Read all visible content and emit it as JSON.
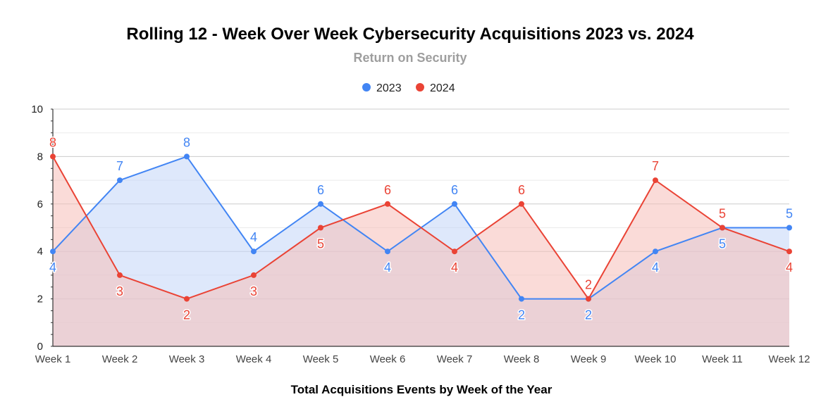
{
  "chart_data": {
    "type": "area",
    "title": "Rolling 12 - Week Over Week Cybersecurity Acquisitions 2023 vs. 2024",
    "subtitle": "Return on Security",
    "xlabel": "Total Acquisitions Events by Week of the Year",
    "ylabel": "",
    "ylim": [
      0,
      10
    ],
    "yticks": [
      "0",
      "2",
      "4",
      "6",
      "8",
      "10"
    ],
    "categories": [
      "Week 1",
      "Week 2",
      "Week 3",
      "Week 4",
      "Week 5",
      "Week 6",
      "Week 7",
      "Week 8",
      "Week 9",
      "Week 10",
      "Week 11",
      "Week 12"
    ],
    "legend_position": "top-center",
    "series": [
      {
        "name": "2023",
        "color": "#4285f4",
        "fill": "#c2d5f8",
        "values": [
          4,
          7,
          8,
          4,
          6,
          4,
          6,
          2,
          2,
          4,
          5,
          5
        ],
        "labels": [
          "4",
          "7",
          "8",
          "4",
          "6",
          "4",
          "6",
          "2",
          "2",
          "4",
          "5",
          "5"
        ]
      },
      {
        "name": "2024",
        "color": "#ea4335",
        "fill": "#f6bdb8",
        "values": [
          8,
          3,
          2,
          3,
          5,
          6,
          4,
          6,
          2,
          7,
          5,
          4
        ],
        "labels": [
          "8",
          "3",
          "2",
          "3",
          "5",
          "6",
          "4",
          "6",
          "2",
          "7",
          "5",
          "4"
        ]
      }
    ]
  }
}
